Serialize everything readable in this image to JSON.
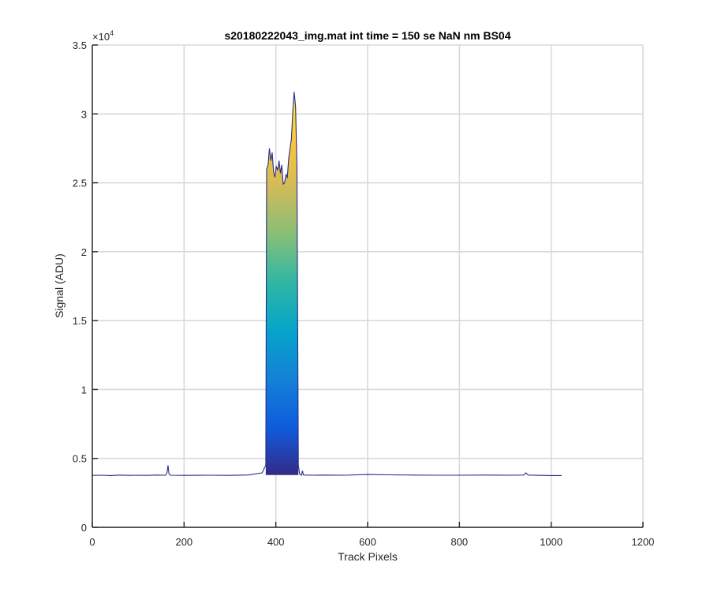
{
  "chart_data": {
    "type": "area",
    "title": "s20180222043_img.mat int time = 150 se  NaN nm BS04",
    "xlabel": "Track Pixels",
    "ylabel": "Signal (ADU)",
    "xlim": [
      0,
      1200
    ],
    "ylim": [
      0,
      35000
    ],
    "x_ticks": [
      0,
      200,
      400,
      600,
      800,
      1000,
      1200
    ],
    "x_tick_labels": [
      "0",
      "200",
      "400",
      "600",
      "800",
      "1000",
      "1200"
    ],
    "y_ticks": [
      0,
      5000,
      10000,
      15000,
      20000,
      25000,
      30000,
      35000
    ],
    "y_tick_labels": [
      "0",
      "0.5",
      "1",
      "1.5",
      "2",
      "2.5",
      "3",
      "3.5"
    ],
    "y_exponent_label": "×10",
    "y_exponent_power": "4",
    "grid": true,
    "legend": false,
    "colormap": [
      "#352a87",
      "#0f5cdd",
      "#1481d6",
      "#06a4ca",
      "#2eb7a4",
      "#87bf77",
      "#d1bb59",
      "#fec832",
      "#f9fb0e"
    ],
    "baseline_color": "#2b2b8a",
    "series": [
      {
        "x": [
          0,
          20,
          40,
          60,
          80,
          100,
          120,
          140,
          160,
          163,
          165,
          167,
          170,
          200,
          250,
          300,
          340,
          370,
          378,
          380,
          383,
          386,
          389,
          392,
          395,
          398,
          401,
          404,
          407,
          410,
          413,
          416,
          419,
          422,
          425,
          428,
          431,
          434,
          437,
          440,
          443,
          446,
          449,
          452,
          456,
          458,
          460,
          480,
          500,
          550,
          600,
          650,
          700,
          750,
          800,
          850,
          900,
          940,
          945,
          950,
          1000,
          1023
        ],
        "y": [
          3770,
          3780,
          3760,
          3790,
          3770,
          3780,
          3770,
          3790,
          3780,
          4000,
          4500,
          3900,
          3780,
          3770,
          3780,
          3770,
          3800,
          3950,
          4500,
          26000,
          26300,
          27500,
          26600,
          27200,
          25800,
          25400,
          26200,
          25900,
          26600,
          25700,
          26300,
          24900,
          25000,
          25600,
          25400,
          26800,
          27500,
          28200,
          30200,
          31600,
          30500,
          26200,
          4500,
          3850,
          3780,
          4100,
          3800,
          3780,
          3790,
          3780,
          3830,
          3810,
          3790,
          3780,
          3780,
          3790,
          3780,
          3790,
          3950,
          3790,
          3760,
          3760
        ]
      }
    ]
  }
}
